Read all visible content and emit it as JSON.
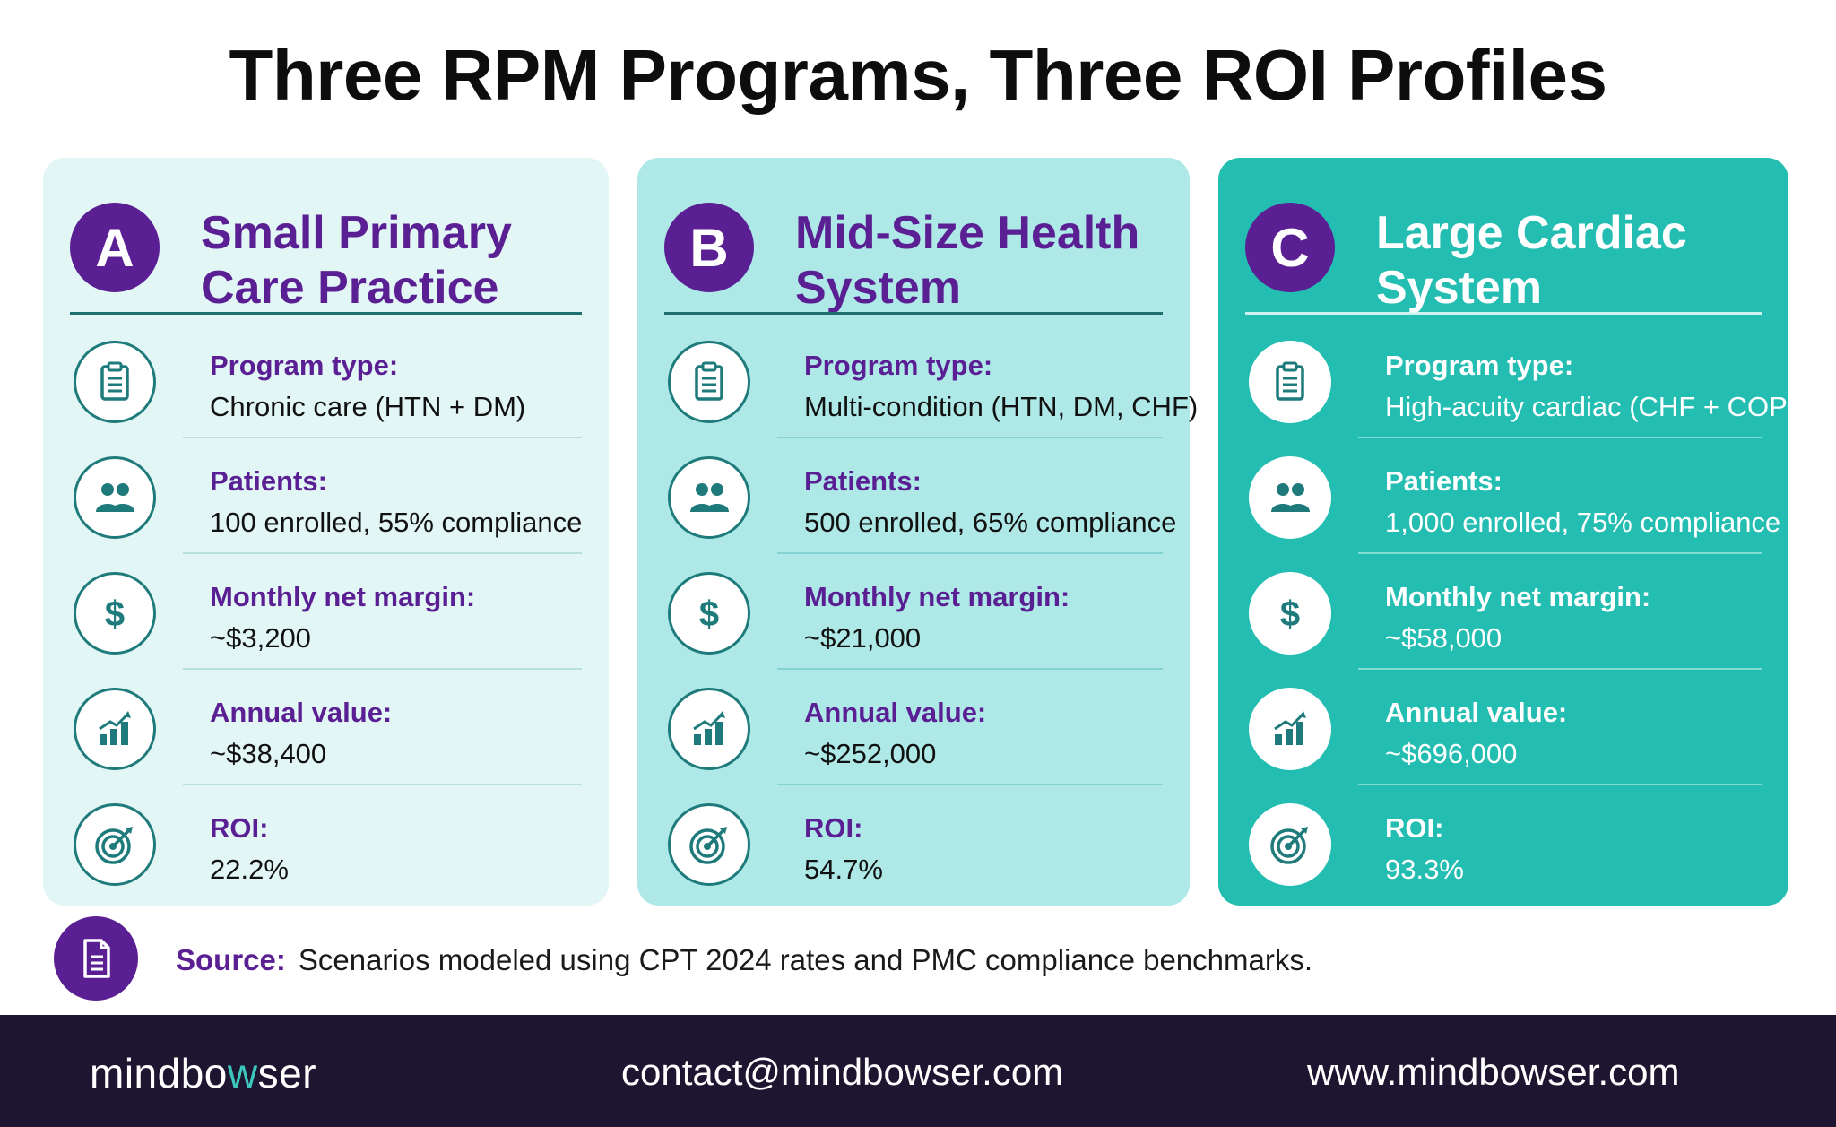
{
  "title": "Three RPM Programs, Three ROI Profiles",
  "colors": {
    "purple": "#5b1f94",
    "teal_dark": "#1f7b7b",
    "card_a_bg": "#e3f6f6",
    "card_b_bg": "#aee9e8",
    "card_c_bg": "#24bdb1",
    "footer_bg": "#1e1530"
  },
  "cards": [
    {
      "badge": "A",
      "title": "Small Primary Care Practice",
      "rows": [
        {
          "icon": "clipboard-icon",
          "label": "Program type:",
          "value": "Chronic care (HTN + DM)"
        },
        {
          "icon": "patients-icon",
          "label": "Patients:",
          "value": "100 enrolled, 55% compliance"
        },
        {
          "icon": "dollar-icon",
          "label": "Monthly net margin:",
          "value": "~$3,200"
        },
        {
          "icon": "bar-chart-icon",
          "label": "Annual value:",
          "value": "~$38,400"
        },
        {
          "icon": "target-icon",
          "label": "ROI:",
          "value": "22.2%"
        }
      ]
    },
    {
      "badge": "B",
      "title": "Mid-Size Health System",
      "rows": [
        {
          "icon": "clipboard-icon",
          "label": "Program type:",
          "value": "Multi-condition (HTN, DM, CHF)"
        },
        {
          "icon": "patients-icon",
          "label": "Patients:",
          "value": "500 enrolled, 65% compliance"
        },
        {
          "icon": "dollar-icon",
          "label": "Monthly net margin:",
          "value": "~$21,000"
        },
        {
          "icon": "bar-chart-icon",
          "label": "Annual value:",
          "value": "~$252,000"
        },
        {
          "icon": "target-icon",
          "label": "ROI:",
          "value": "54.7%"
        }
      ]
    },
    {
      "badge": "C",
      "title": "Large Cardiac System",
      "rows": [
        {
          "icon": "clipboard-icon",
          "label": "Program type:",
          "value": "High-acuity cardiac (CHF + COPD)"
        },
        {
          "icon": "patients-icon",
          "label": "Patients:",
          "value": "1,000 enrolled, 75% compliance"
        },
        {
          "icon": "dollar-icon",
          "label": "Monthly net margin:",
          "value": "~$58,000"
        },
        {
          "icon": "bar-chart-icon",
          "label": "Annual value:",
          "value": "~$696,000"
        },
        {
          "icon": "target-icon",
          "label": "ROI:",
          "value": "93.3%"
        }
      ]
    }
  ],
  "source": {
    "icon": "document-icon",
    "label": "Source:",
    "text": "Scenarios modeled using CPT 2024 rates and PMC compliance benchmarks."
  },
  "footer": {
    "brand_pre": "mindbo",
    "brand_accent": "w",
    "brand_post": "ser",
    "email": "contact@mindbowser.com",
    "website": "www.mindbowser.com"
  }
}
